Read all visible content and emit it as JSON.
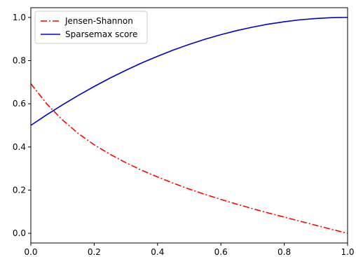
{
  "chart_data": {
    "type": "line",
    "title": "",
    "xlabel": "",
    "ylabel": "",
    "xlim": [
      0.0,
      1.0
    ],
    "ylim": [
      -0.045,
      1.045
    ],
    "xticks": [
      "0.0",
      "0.2",
      "0.4",
      "0.6",
      "0.8",
      "1.0"
    ],
    "yticks": [
      "0.0",
      "0.2",
      "0.4",
      "0.6",
      "0.8",
      "1.0"
    ],
    "grid": false,
    "legend_position": "upper-left",
    "series": [
      {
        "name": "Jensen-Shannon",
        "color": "#ff0000",
        "linestyle": "dashdot",
        "x": [
          0.0,
          0.05,
          0.1,
          0.15,
          0.2,
          0.25,
          0.3,
          0.35,
          0.4,
          0.45,
          0.5,
          0.55,
          0.6,
          0.65,
          0.7,
          0.75,
          0.8,
          0.85,
          0.9,
          0.95,
          1.0
        ],
        "y": [
          0.693,
          0.6,
          0.525,
          0.462,
          0.41,
          0.366,
          0.327,
          0.292,
          0.261,
          0.232,
          0.205,
          0.18,
          0.157,
          0.135,
          0.114,
          0.094,
          0.075,
          0.056,
          0.037,
          0.018,
          0.0
        ]
      },
      {
        "name": "Sparsemax score",
        "color": "#0000cc",
        "linestyle": "solid",
        "x": [
          0.0,
          0.05,
          0.1,
          0.15,
          0.2,
          0.25,
          0.3,
          0.35,
          0.4,
          0.45,
          0.5,
          0.55,
          0.6,
          0.65,
          0.7,
          0.75,
          0.8,
          0.85,
          0.9,
          0.95,
          1.0
        ],
        "y": [
          0.5,
          0.549,
          0.595,
          0.639,
          0.68,
          0.719,
          0.755,
          0.789,
          0.82,
          0.849,
          0.875,
          0.899,
          0.92,
          0.939,
          0.955,
          0.969,
          0.98,
          0.989,
          0.995,
          0.999,
          1.0
        ]
      }
    ]
  }
}
